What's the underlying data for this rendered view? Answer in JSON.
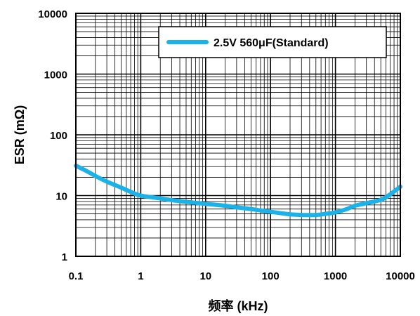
{
  "chart_data": {
    "type": "line",
    "xlabel": "频率 (kHz)",
    "ylabel": "ESR (mΩ)",
    "x_scale": "log",
    "y_scale": "log",
    "xlim": [
      0.1,
      10000
    ],
    "ylim": [
      1,
      10000
    ],
    "x_ticks": [
      "0.1",
      "1",
      "10",
      "100",
      "1000",
      "10000"
    ],
    "y_ticks": [
      "1",
      "10",
      "100",
      "1000",
      "10000"
    ],
    "grid": true,
    "legend_position": "top-right",
    "series": [
      {
        "name": "2.5V 560μF(Standard)",
        "color": "#1ab2e8",
        "x": [
          0.1,
          0.15,
          0.2,
          0.3,
          0.5,
          0.7,
          1,
          2,
          3,
          5,
          7,
          10,
          20,
          30,
          50,
          70,
          100,
          150,
          200,
          300,
          500,
          700,
          1000,
          1500,
          2000,
          3000,
          5000,
          7000,
          10000
        ],
        "y": [
          31,
          25,
          21,
          17,
          13.5,
          11.5,
          10,
          9,
          8.4,
          7.9,
          7.6,
          7.3,
          6.8,
          6.4,
          6.0,
          5.7,
          5.4,
          5.1,
          4.9,
          4.8,
          4.8,
          5.0,
          5.3,
          6.0,
          6.8,
          7.5,
          8.5,
          10.5,
          14
        ]
      }
    ]
  }
}
